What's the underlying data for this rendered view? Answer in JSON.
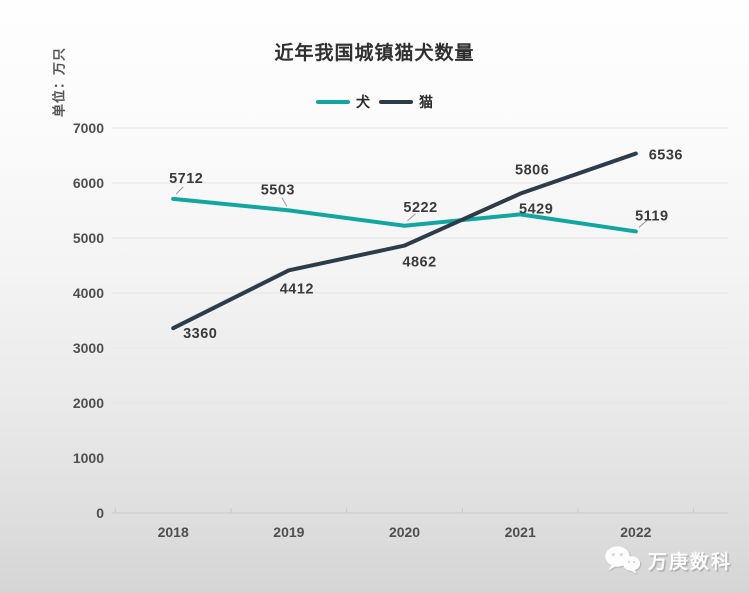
{
  "page_title": "近年我国城镇猫犬数量",
  "colors": {
    "dog_line": "#11A7A0",
    "cat_line": "#2C3D49",
    "grid_line": "#e4e4e4",
    "axis_line": "#c9c9c9",
    "leader_line": "#9a9a9a",
    "data_label": "#3b3b3b",
    "tick_label": "#4f4f4f"
  },
  "watermark": {
    "icon": "wechat-icon",
    "text": "万庚数科"
  },
  "chart_data": {
    "type": "line",
    "title": "近年我国城镇猫犬数量",
    "unit_label": "单位：万只",
    "xlabel": "",
    "ylabel": "单位：万只",
    "categories": [
      "2018",
      "2019",
      "2020",
      "2021",
      "2022"
    ],
    "series": [
      {
        "name": "犬",
        "color": "#11A7A0",
        "values": [
          5712,
          5503,
          5222,
          5429,
          5119
        ]
      },
      {
        "name": "猫",
        "color": "#2C3D49",
        "values": [
          3360,
          4412,
          4862,
          5806,
          6536
        ]
      }
    ],
    "ylim": [
      0,
      7000
    ],
    "y_ticks": [
      0,
      1000,
      2000,
      3000,
      4000,
      5000,
      6000,
      7000
    ],
    "grid": true,
    "legend_position": "top",
    "data_labels": true
  }
}
